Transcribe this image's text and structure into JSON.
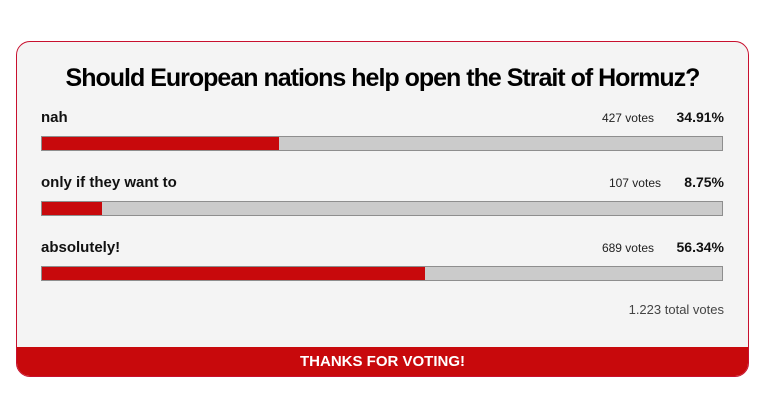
{
  "title": "Should European nations help open the Strait of Hormuz?",
  "options": [
    {
      "label": "nah",
      "votes": "427 votes",
      "percent": 34.91,
      "percent_label": "34.91%"
    },
    {
      "label": "only if they want to",
      "votes": "107 votes",
      "percent": 8.75,
      "percent_label": "8.75%"
    },
    {
      "label": "absolutely!",
      "votes": "689 votes",
      "percent": 56.34,
      "percent_label": "56.34%"
    }
  ],
  "total": "1.223 total votes",
  "footer": "THANKS FOR VOTING!"
}
